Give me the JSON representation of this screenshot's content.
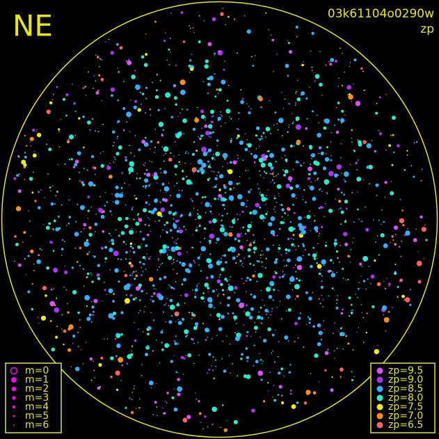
{
  "header": {
    "corner": "NE",
    "frame": "03k61104o0290w",
    "band": "zp"
  },
  "magnitude_legend": {
    "color": "#ff00ff",
    "items": [
      "m=0",
      "m=1",
      "m=2",
      "m=3",
      "m=4",
      "m=5",
      "m=6"
    ]
  },
  "zp_legend": {
    "items": [
      {
        "label": "zp=9.5",
        "color": "#e050ff"
      },
      {
        "label": "zp=9.0",
        "color": "#b030ff"
      },
      {
        "label": "zp=8.5",
        "color": "#30b0ff"
      },
      {
        "label": "zp=8.0",
        "color": "#20f0d0"
      },
      {
        "label": "zp=7.5",
        "color": "#f0f000"
      },
      {
        "label": "zp=7.0",
        "color": "#ff9000"
      },
      {
        "label": "zp=6.5",
        "color": "#ff6060"
      }
    ]
  },
  "frame_color": "#e8e800"
}
